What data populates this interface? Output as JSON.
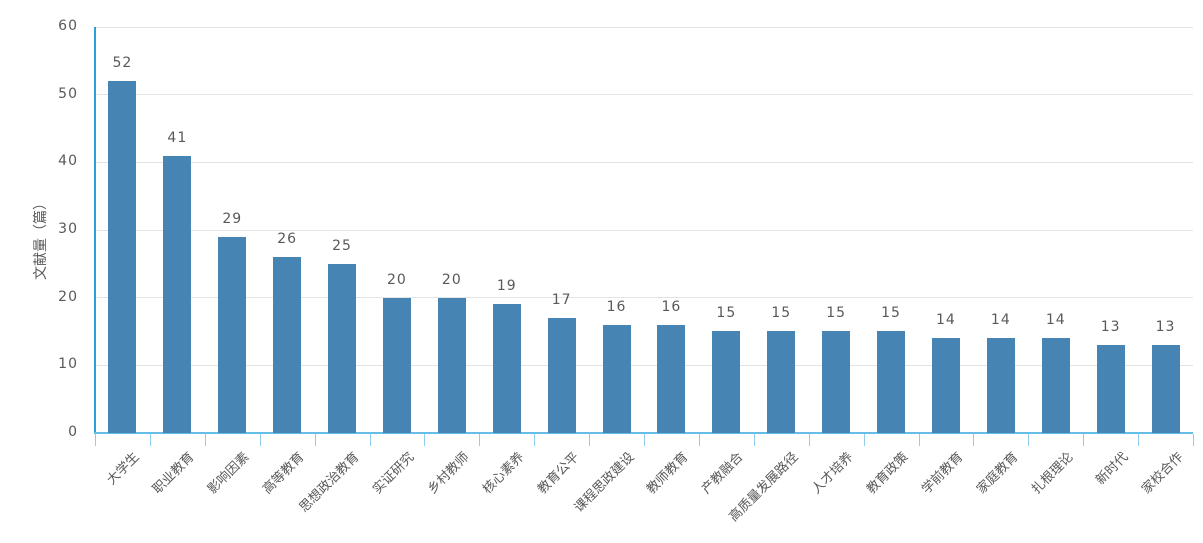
{
  "chart_data": {
    "type": "bar",
    "title": "",
    "xlabel": "",
    "ylabel": "文献量（篇）",
    "categories": [
      "大学生",
      "职业教育",
      "影响因素",
      "高等教育",
      "思想政治教育",
      "实证研究",
      "乡村教师",
      "核心素养",
      "教育公平",
      "课程思政建设",
      "教师教育",
      "产教融合",
      "高质量发展路径",
      "人才培养",
      "教育政策",
      "学前教育",
      "家庭教育",
      "扎根理论",
      "新时代",
      "家校合作"
    ],
    "values": [
      52,
      41,
      29,
      26,
      25,
      20,
      20,
      19,
      17,
      16,
      16,
      15,
      15,
      15,
      15,
      14,
      14,
      14,
      13,
      13
    ],
    "value_labels": [
      "52",
      "41",
      "29",
      "26",
      "25",
      "20",
      "20",
      "19",
      "17",
      "16",
      "16",
      "15",
      "15",
      "15",
      "15",
      "14",
      "14",
      "14",
      "13",
      "13"
    ],
    "ylim": [
      0,
      60
    ],
    "yticks": [
      0,
      10,
      20,
      30,
      40,
      50,
      60
    ],
    "grid": true,
    "legend": false,
    "x_label_rotation_deg": 45,
    "colors": {
      "bar": "#4584B3",
      "y_axis": "#2B9FD9",
      "x_axis": "#66BDE8",
      "x_tick": "#8FCDEF",
      "gridline": "#E3E3E3",
      "text": "#595959"
    }
  }
}
